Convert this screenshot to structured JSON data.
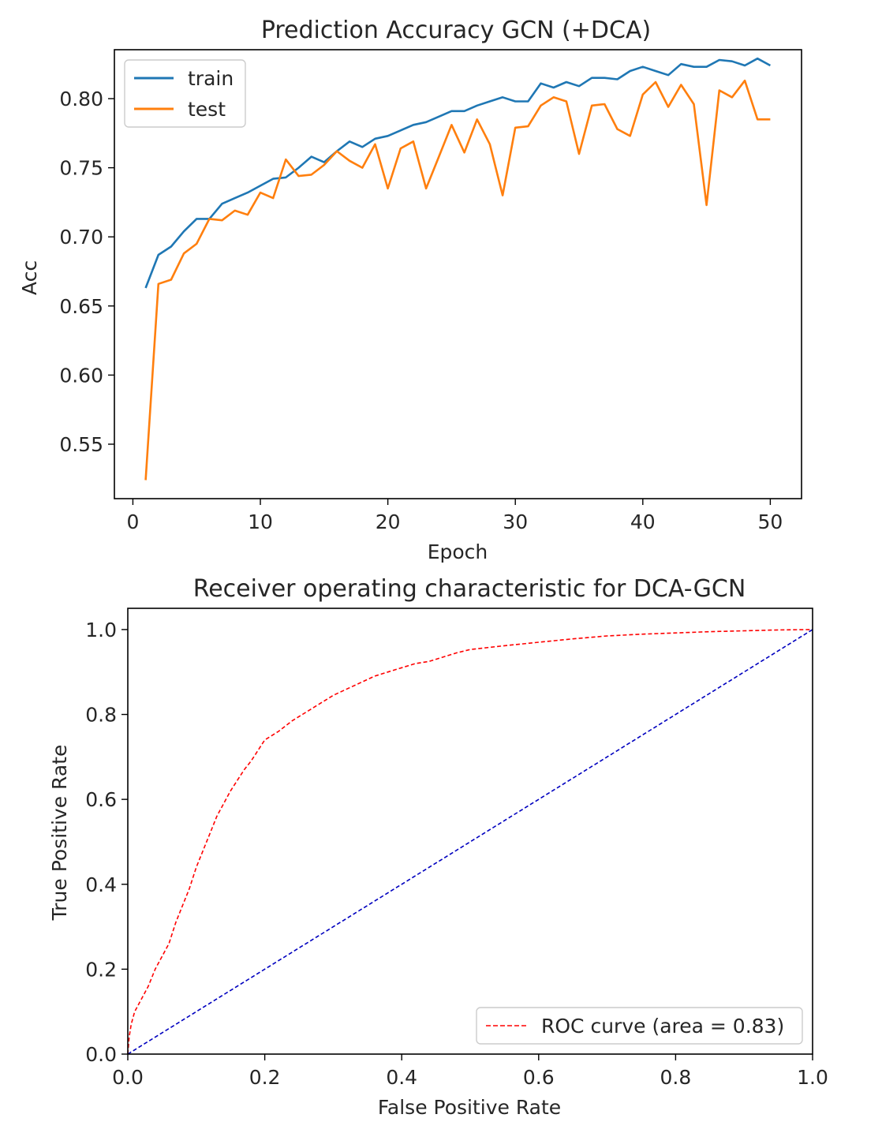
{
  "chart_data": [
    {
      "type": "line",
      "title": "Prediction Accuracy GCN (+DCA)",
      "xlabel": "Epoch",
      "ylabel": "Acc",
      "xlim": [
        -1.45,
        52.45
      ],
      "ylim": [
        0.5106,
        0.8354
      ],
      "xticks": [
        0,
        10,
        20,
        30,
        40,
        50
      ],
      "yticks": [
        0.55,
        0.6,
        0.65,
        0.7,
        0.75,
        0.8
      ],
      "ytick_labels": [
        "0.55",
        "0.60",
        "0.65",
        "0.70",
        "0.75",
        "0.80"
      ],
      "grid": false,
      "legend_position": "upper left",
      "x": [
        1,
        2,
        3,
        4,
        5,
        6,
        7,
        8,
        9,
        10,
        11,
        12,
        13,
        14,
        15,
        16,
        17,
        18,
        19,
        20,
        21,
        22,
        23,
        24,
        25,
        26,
        27,
        28,
        29,
        30,
        31,
        32,
        33,
        34,
        35,
        36,
        37,
        38,
        39,
        40,
        41,
        42,
        43,
        44,
        45,
        46,
        47,
        48,
        49,
        50
      ],
      "series": [
        {
          "name": "train",
          "color": "#1f77b4",
          "values": [
            0.663,
            0.687,
            0.693,
            0.704,
            0.713,
            0.713,
            0.724,
            0.728,
            0.732,
            0.737,
            0.742,
            0.743,
            0.75,
            0.758,
            0.754,
            0.762,
            0.769,
            0.765,
            0.771,
            0.773,
            0.777,
            0.781,
            0.783,
            0.787,
            0.791,
            0.791,
            0.795,
            0.798,
            0.801,
            0.798,
            0.798,
            0.811,
            0.808,
            0.812,
            0.809,
            0.815,
            0.815,
            0.814,
            0.82,
            0.823,
            0.82,
            0.817,
            0.825,
            0.823,
            0.823,
            0.828,
            0.827,
            0.824,
            0.829,
            0.824
          ]
        },
        {
          "name": "test",
          "color": "#ff7f0e",
          "values": [
            0.524,
            0.666,
            0.669,
            0.688,
            0.695,
            0.713,
            0.712,
            0.719,
            0.716,
            0.732,
            0.728,
            0.756,
            0.744,
            0.745,
            0.752,
            0.762,
            0.755,
            0.75,
            0.767,
            0.735,
            0.764,
            0.769,
            0.735,
            0.758,
            0.781,
            0.761,
            0.785,
            0.767,
            0.73,
            0.779,
            0.78,
            0.795,
            0.801,
            0.798,
            0.76,
            0.795,
            0.796,
            0.778,
            0.773,
            0.803,
            0.812,
            0.794,
            0.81,
            0.796,
            0.723,
            0.806,
            0.801,
            0.813,
            0.785,
            0.785
          ]
        }
      ]
    },
    {
      "type": "line",
      "title": "Receiver operating characteristic for DCA-GCN",
      "xlabel": "False Positive Rate",
      "ylabel": "True Positive Rate",
      "xlim": [
        0.0,
        1.0
      ],
      "ylim": [
        0.0,
        1.05
      ],
      "xticks": [
        0.0,
        0.2,
        0.4,
        0.6,
        0.8,
        1.0
      ],
      "yticks": [
        0.0,
        0.2,
        0.4,
        0.6,
        0.8,
        1.0
      ],
      "xtick_labels": [
        "0.0",
        "0.2",
        "0.4",
        "0.6",
        "0.8",
        "1.0"
      ],
      "ytick_labels": [
        "0.0",
        "0.2",
        "0.4",
        "0.6",
        "0.8",
        "1.0"
      ],
      "grid": false,
      "legend_position": "lower right",
      "series": [
        {
          "name": "ROC curve (area = 0.83)",
          "color": "#ff0000",
          "linestyle": "dashed",
          "x": [
            0.0,
            0.002,
            0.005,
            0.01,
            0.02,
            0.03,
            0.04,
            0.05,
            0.06,
            0.07,
            0.08,
            0.09,
            0.1,
            0.11,
            0.12,
            0.13,
            0.14,
            0.15,
            0.16,
            0.17,
            0.18,
            0.19,
            0.2,
            0.21,
            0.22,
            0.24,
            0.26,
            0.28,
            0.3,
            0.32,
            0.34,
            0.36,
            0.38,
            0.4,
            0.42,
            0.44,
            0.46,
            0.48,
            0.5,
            0.55,
            0.6,
            0.65,
            0.7,
            0.75,
            0.8,
            0.85,
            0.9,
            0.95,
            1.0
          ],
          "y": [
            0.0,
            0.04,
            0.07,
            0.1,
            0.13,
            0.16,
            0.2,
            0.23,
            0.26,
            0.31,
            0.35,
            0.39,
            0.44,
            0.48,
            0.52,
            0.56,
            0.59,
            0.62,
            0.645,
            0.67,
            0.69,
            0.715,
            0.74,
            0.75,
            0.76,
            0.785,
            0.805,
            0.825,
            0.845,
            0.86,
            0.875,
            0.89,
            0.9,
            0.91,
            0.92,
            0.925,
            0.935,
            0.945,
            0.953,
            0.962,
            0.97,
            0.978,
            0.985,
            0.989,
            0.992,
            0.995,
            0.997,
            0.999,
            1.0
          ]
        },
        {
          "name": "",
          "color": "#0000bf",
          "linestyle": "dashed",
          "x": [
            0.0,
            1.0
          ],
          "y": [
            0.0,
            1.0
          ]
        }
      ]
    }
  ]
}
